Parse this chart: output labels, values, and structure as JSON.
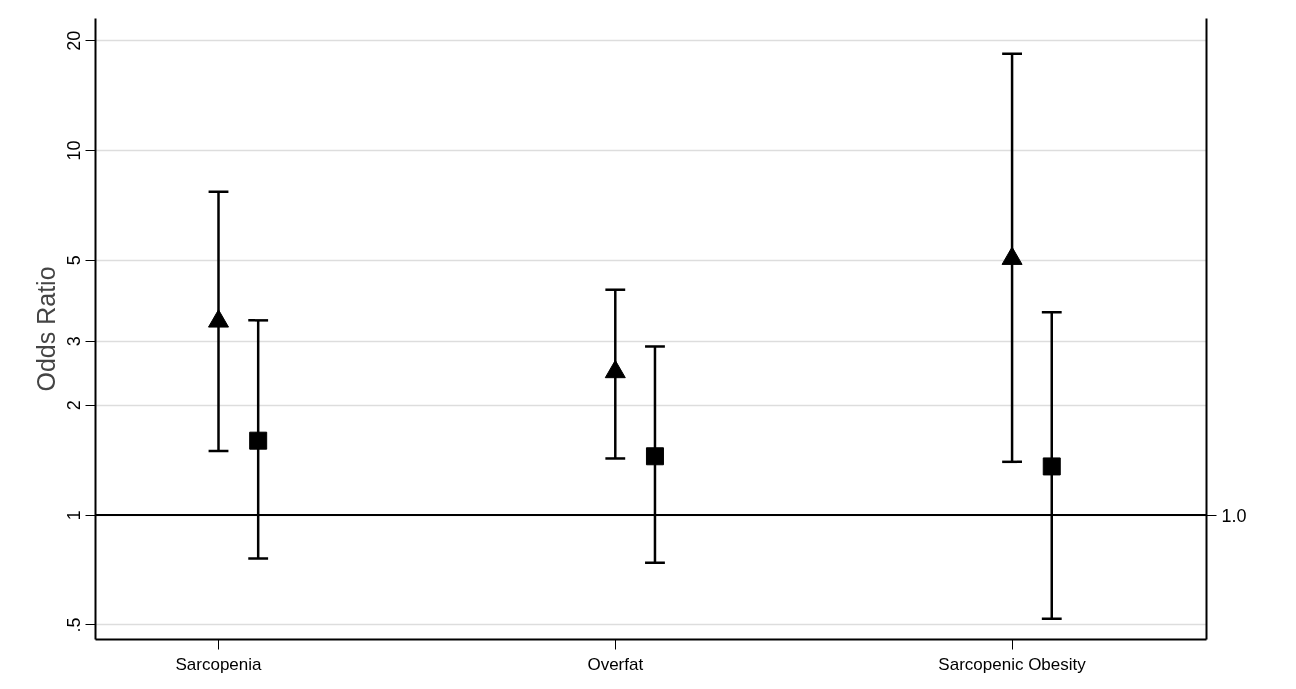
{
  "chart_data": {
    "type": "scatter",
    "ylabel": "Odds Ratio",
    "categories": [
      "Sarcopenia",
      "Overfat",
      "Sarcopenic Obesity"
    ],
    "series": [
      {
        "color": "#000000",
        "marker": "triangle",
        "values": [
          3.4,
          2.47,
          5.05
        ],
        "errors": [
          [
            1.5,
            7.7
          ],
          [
            1.43,
            4.15
          ],
          [
            1.4,
            18.4
          ]
        ]
      },
      {
        "color": "#000000",
        "marker": "square",
        "values": [
          1.6,
          1.45,
          1.36
        ],
        "errors": [
          [
            0.76,
            3.42
          ],
          [
            0.74,
            2.9
          ],
          [
            0.52,
            3.6
          ]
        ]
      }
    ],
    "log": true,
    "ylim": [
      0.456,
      23
    ],
    "yticks": [
      {
        "value": 0.5,
        "label": ".5"
      },
      1,
      2,
      3,
      5,
      10,
      20
    ],
    "ref_lines": [
      {
        "axis": "y",
        "value": 1,
        "label": "1.0",
        "color": "#000000"
      }
    ],
    "grid": "y"
  }
}
